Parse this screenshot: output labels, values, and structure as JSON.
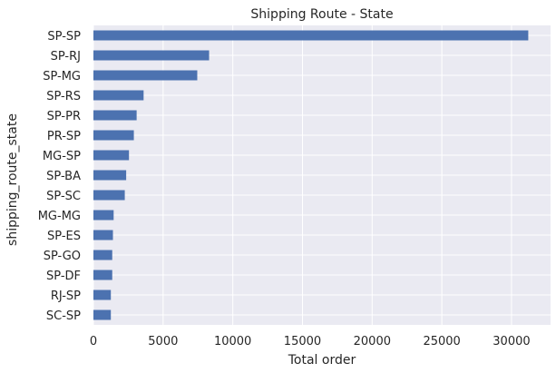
{
  "chart_data": {
    "type": "bar",
    "orientation": "horizontal",
    "title": "Shipping Route - State",
    "xlabel": "Total order",
    "ylabel": "shipping_route_state",
    "categories": [
      "SP-SP",
      "SP-RJ",
      "SP-MG",
      "SP-RS",
      "SP-PR",
      "PR-SP",
      "MG-SP",
      "SP-BA",
      "SP-SC",
      "MG-MG",
      "SP-ES",
      "SP-GO",
      "SP-DF",
      "RJ-SP",
      "SC-SP"
    ],
    "values": [
      31200,
      8300,
      7450,
      3600,
      3100,
      2900,
      2550,
      2350,
      2250,
      1450,
      1400,
      1350,
      1350,
      1250,
      1250
    ],
    "xlim": [
      0,
      32800
    ],
    "xticks": [
      0,
      5000,
      10000,
      15000,
      20000,
      25000,
      30000
    ],
    "bar_color": "#4c72b0",
    "background": "#eaeaf2",
    "grid": true
  }
}
